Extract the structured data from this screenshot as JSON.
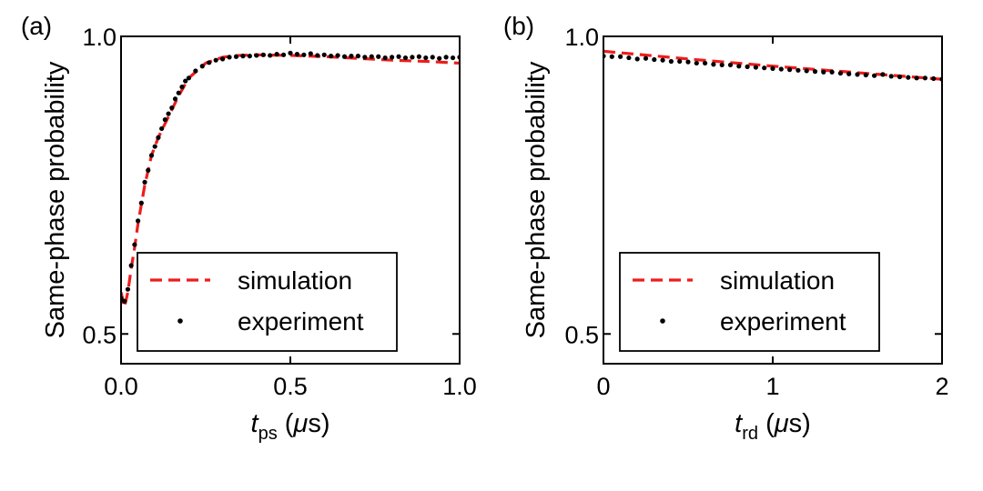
{
  "chart_data": [
    {
      "type": "line",
      "panel_label": "(a)",
      "xlabel": {
        "var": "t",
        "sub": "ps",
        "unit_open": " (",
        "mu": "μ",
        "unit_rest": "s)"
      },
      "ylabel": "Same-phase probability",
      "xlim": [
        0.0,
        1.0
      ],
      "ylim": [
        0.45,
        1.0
      ],
      "xticks": [
        0.0,
        0.5,
        1.0
      ],
      "xtick_labels": [
        "0.0",
        "0.5",
        "1.0"
      ],
      "yticks": [
        0.5,
        1.0
      ],
      "ytick_labels": [
        "0.5",
        "1.0"
      ],
      "legend": {
        "position": "lower-right",
        "labels": [
          "simulation",
          "experiment"
        ]
      },
      "series": [
        {
          "name": "simulation",
          "style": "dashed",
          "color": "#ee1c1c",
          "x": [
            0.0,
            0.01,
            0.02,
            0.03,
            0.04,
            0.05,
            0.07,
            0.09,
            0.11,
            0.14,
            0.17,
            0.2,
            0.25,
            0.3,
            0.35,
            0.4,
            0.5,
            0.6,
            0.7,
            0.8,
            0.9,
            1.0
          ],
          "y": [
            0.57,
            0.545,
            0.57,
            0.61,
            0.645,
            0.685,
            0.75,
            0.8,
            0.83,
            0.865,
            0.9,
            0.93,
            0.955,
            0.965,
            0.968,
            0.969,
            0.968,
            0.966,
            0.963,
            0.96,
            0.958,
            0.955
          ]
        },
        {
          "name": "experiment",
          "style": "markers",
          "color": "#000000",
          "x": [
            0.0,
            0.01,
            0.02,
            0.03,
            0.04,
            0.05,
            0.06,
            0.07,
            0.08,
            0.09,
            0.1,
            0.11,
            0.12,
            0.13,
            0.14,
            0.15,
            0.16,
            0.17,
            0.18,
            0.19,
            0.2,
            0.22,
            0.24,
            0.26,
            0.28,
            0.3,
            0.32,
            0.34,
            0.36,
            0.38,
            0.4,
            0.42,
            0.44,
            0.46,
            0.48,
            0.5,
            0.52,
            0.54,
            0.56,
            0.58,
            0.6,
            0.62,
            0.64,
            0.66,
            0.68,
            0.7,
            0.72,
            0.74,
            0.76,
            0.78,
            0.8,
            0.82,
            0.84,
            0.86,
            0.88,
            0.9,
            0.92,
            0.94,
            0.96,
            0.98,
            1.0
          ],
          "y": [
            0.56,
            0.555,
            0.575,
            0.615,
            0.65,
            0.69,
            0.72,
            0.755,
            0.775,
            0.8,
            0.815,
            0.83,
            0.845,
            0.86,
            0.87,
            0.88,
            0.895,
            0.905,
            0.915,
            0.925,
            0.93,
            0.942,
            0.95,
            0.956,
            0.96,
            0.962,
            0.965,
            0.966,
            0.967,
            0.967,
            0.968,
            0.969,
            0.968,
            0.97,
            0.969,
            0.972,
            0.97,
            0.969,
            0.971,
            0.968,
            0.969,
            0.967,
            0.968,
            0.966,
            0.967,
            0.967,
            0.965,
            0.966,
            0.966,
            0.964,
            0.965,
            0.966,
            0.964,
            0.965,
            0.966,
            0.964,
            0.965,
            0.963,
            0.965,
            0.964,
            0.965
          ]
        }
      ]
    },
    {
      "type": "line",
      "panel_label": "(b)",
      "xlabel": {
        "var": "t",
        "sub": "rd",
        "unit_open": " (",
        "mu": "μ",
        "unit_rest": "s)"
      },
      "ylabel": "Same-phase probability",
      "xlim": [
        0,
        2
      ],
      "ylim": [
        0.45,
        1.0
      ],
      "xticks": [
        0,
        1,
        2
      ],
      "xtick_labels": [
        "0",
        "1",
        "2"
      ],
      "yticks": [
        0.5,
        1.0
      ],
      "ytick_labels": [
        "0.5",
        "1.0"
      ],
      "legend": {
        "position": "lower-right",
        "labels": [
          "simulation",
          "experiment"
        ]
      },
      "series": [
        {
          "name": "simulation",
          "style": "dashed",
          "color": "#ee1c1c",
          "x": [
            0.0,
            0.5,
            1.0,
            1.5,
            2.0
          ],
          "y": [
            0.975,
            0.962,
            0.95,
            0.939,
            0.928
          ]
        },
        {
          "name": "experiment",
          "style": "markers",
          "color": "#000000",
          "x": [
            0.0,
            0.05,
            0.1,
            0.15,
            0.2,
            0.25,
            0.3,
            0.35,
            0.4,
            0.45,
            0.5,
            0.55,
            0.6,
            0.65,
            0.7,
            0.75,
            0.8,
            0.85,
            0.9,
            0.95,
            1.0,
            1.05,
            1.1,
            1.15,
            1.2,
            1.25,
            1.3,
            1.35,
            1.4,
            1.45,
            1.5,
            1.55,
            1.6,
            1.65,
            1.7,
            1.75,
            1.8,
            1.85,
            1.9,
            1.95,
            2.0
          ],
          "y": [
            0.967,
            0.966,
            0.966,
            0.964,
            0.962,
            0.963,
            0.961,
            0.96,
            0.958,
            0.958,
            0.957,
            0.955,
            0.955,
            0.953,
            0.952,
            0.952,
            0.95,
            0.949,
            0.948,
            0.947,
            0.946,
            0.945,
            0.944,
            0.943,
            0.942,
            0.941,
            0.94,
            0.94,
            0.938,
            0.937,
            0.936,
            0.935,
            0.934,
            0.936,
            0.933,
            0.932,
            0.931,
            0.93,
            0.93,
            0.929,
            0.928
          ]
        }
      ]
    }
  ]
}
